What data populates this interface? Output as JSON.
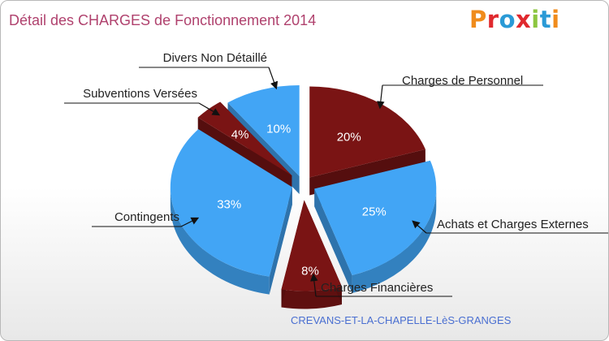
{
  "header": {
    "title": "Détail des CHARGES de Fonctionnement 2014",
    "logo": "Proxiti",
    "logo_colors": [
      "#f08c1c",
      "#e0292e",
      "#2a9ad6",
      "#e0292e",
      "#8cc63f",
      "#2a9ad6",
      "#f08c1c"
    ]
  },
  "footer": {
    "commune": "CREVANS-ET-LA-CHAPELLE-LèS-GRANGES"
  },
  "chart_data": {
    "type": "pie",
    "style": "3d-exploded",
    "title": "Détail des CHARGES de Fonctionnement 2014",
    "unit": "%",
    "slices": [
      {
        "label": "Charges de Personnel",
        "value": 20,
        "pct_label": "20%",
        "color": "#7a1414"
      },
      {
        "label": "Achats et Charges Externes",
        "value": 25,
        "pct_label": "25%",
        "color": "#42a5f5"
      },
      {
        "label": "Charges Financières",
        "value": 8,
        "pct_label": "8%",
        "color": "#7a1414"
      },
      {
        "label": "Contingents",
        "value": 33,
        "pct_label": "33%",
        "color": "#42a5f5"
      },
      {
        "label": "Subventions Versées",
        "value": 4,
        "pct_label": "4%",
        "color": "#7a1414"
      },
      {
        "label": "Divers Non Détaillé",
        "value": 10,
        "pct_label": "10%",
        "color": "#42a5f5"
      }
    ]
  }
}
